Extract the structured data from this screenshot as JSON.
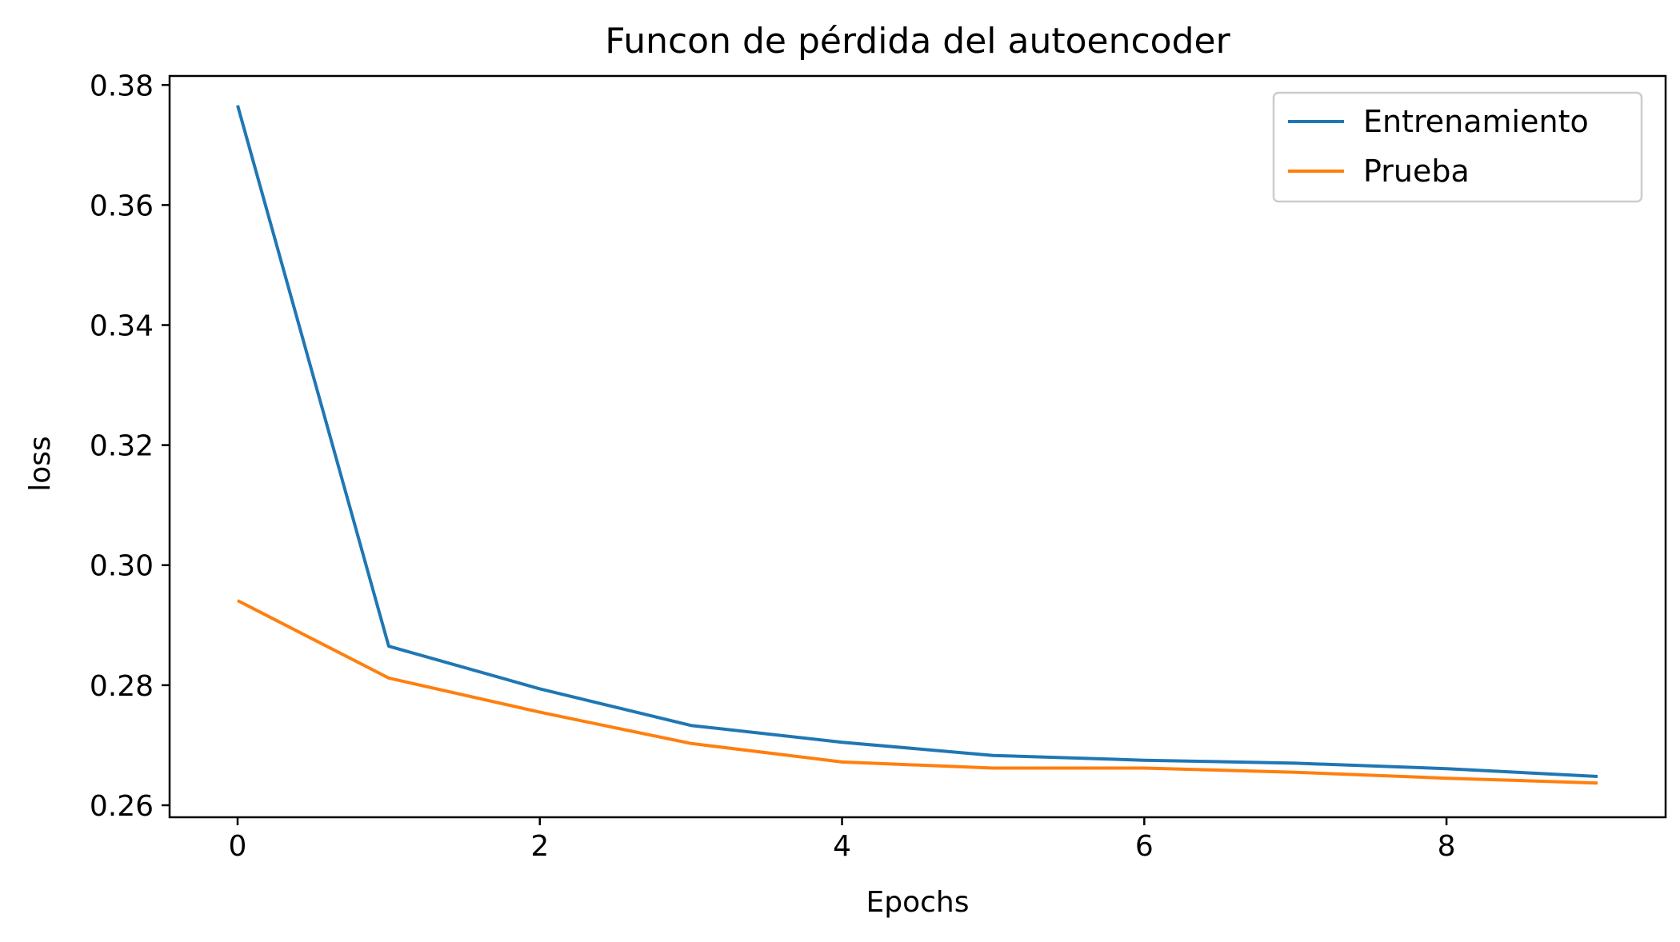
{
  "chart_data": {
    "type": "line",
    "title": "Funcon de pérdida del autoencoder",
    "xlabel": "Epochs",
    "ylabel": "loss",
    "x": [
      0,
      1,
      2,
      3,
      4,
      5,
      6,
      7,
      8,
      9
    ],
    "xlim": [
      -0.45,
      9.45
    ],
    "ylim": [
      0.258,
      0.3815
    ],
    "xticks": [
      0,
      2,
      4,
      6,
      8
    ],
    "yticks": [
      0.26,
      0.28,
      0.3,
      0.32,
      0.34,
      0.36,
      0.38
    ],
    "ytick_labels": [
      "0.26",
      "0.28",
      "0.30",
      "0.32",
      "0.34",
      "0.36",
      "0.38"
    ],
    "grid": false,
    "legend_position": "top-right",
    "series": [
      {
        "name": "Entrenamiento",
        "color": "#1f77b4",
        "values": [
          0.3766,
          0.2865,
          0.2794,
          0.2733,
          0.2705,
          0.2683,
          0.2675,
          0.267,
          0.2661,
          0.2648
        ]
      },
      {
        "name": "Prueba",
        "color": "#ff7f0e",
        "values": [
          0.2941,
          0.2812,
          0.2755,
          0.2703,
          0.2672,
          0.2662,
          0.2662,
          0.2655,
          0.2645,
          0.2637
        ]
      }
    ]
  }
}
